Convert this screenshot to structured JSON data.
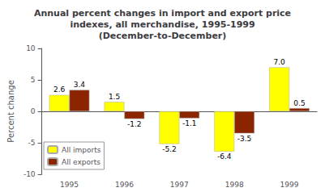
{
  "chart_data": {
    "type": "bar",
    "title": "Annual percent changes in import and export price\nindexes, all merchandise, 1995-1999\n(December-to-December)",
    "categories": [
      "1995",
      "1996",
      "1997",
      "1998",
      "1999"
    ],
    "series": [
      {
        "name": "All imports",
        "color": "#FFFF00",
        "values": [
          2.6,
          1.5,
          -5.2,
          -6.4,
          7.0
        ],
        "value_labels": [
          "2.6",
          "1.5",
          "-5.2",
          "-6.4",
          "7.0"
        ]
      },
      {
        "name": "All exports",
        "color": "#8B2500",
        "values": [
          3.4,
          -1.2,
          -1.1,
          -3.5,
          0.5
        ]
      }
    ],
    "ylabel": "Percent change",
    "ylim": [
      -10,
      10
    ],
    "yticks": [
      -10,
      -5,
      0,
      5,
      10
    ],
    "grid": false,
    "legend": "lower left",
    "data_labels": true
  }
}
